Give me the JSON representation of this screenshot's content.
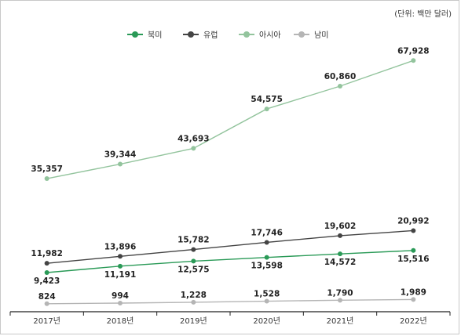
{
  "unit_label": "(단위: 백만 달러)",
  "colors": {
    "north_america": "#2a9a57",
    "europe": "#444444",
    "asia": "#93c49d",
    "south_america": "#b5b5b5",
    "axis": "#222222",
    "frame": "#c8c8c8"
  },
  "chart_data": {
    "type": "line",
    "categories": [
      "2017년",
      "2018년",
      "2019년",
      "2020년",
      "2021년",
      "2022년"
    ],
    "series": [
      {
        "name": "북미",
        "values": [
          9423,
          11191,
          12575,
          13598,
          14572,
          15516
        ]
      },
      {
        "name": "유럽",
        "values": [
          11982,
          13896,
          15782,
          17746,
          19602,
          20992
        ]
      },
      {
        "name": "아시아",
        "values": [
          35357,
          39344,
          43693,
          54575,
          60860,
          67928
        ]
      },
      {
        "name": "남미",
        "values": [
          824,
          994,
          1228,
          1528,
          1790,
          1989
        ]
      }
    ],
    "value_labels": {
      "북미": [
        "9,423",
        "11,191",
        "12,575",
        "13,598",
        "14,572",
        "15,516"
      ],
      "유럽": [
        "11,982",
        "13,896",
        "15,782",
        "17,746",
        "19,602",
        "20,992"
      ],
      "아시아": [
        "35,357",
        "39,344",
        "43,693",
        "54,575",
        "60,860",
        "67,928"
      ],
      "남미": [
        "824",
        "994",
        "1,228",
        "1,528",
        "1,790",
        "1,989"
      ]
    },
    "legend_position": "top-center",
    "grid": false
  }
}
